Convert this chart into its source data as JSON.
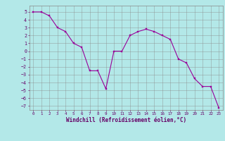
{
  "x": [
    0,
    1,
    2,
    3,
    4,
    5,
    6,
    7,
    8,
    9,
    10,
    11,
    12,
    13,
    14,
    15,
    16,
    17,
    18,
    19,
    20,
    21,
    22,
    23
  ],
  "y": [
    5.0,
    5.0,
    4.5,
    3.0,
    2.5,
    1.0,
    0.5,
    -2.5,
    -2.5,
    -4.8,
    0.0,
    0.0,
    2.0,
    2.5,
    2.8,
    2.5,
    2.0,
    1.5,
    -1.0,
    -1.5,
    -3.5,
    -4.5,
    -4.5,
    -7.2
  ],
  "line_color": "#990099",
  "marker_color": "#990099",
  "bg_color": "#b3e8e8",
  "grid_color": "#888888",
  "xlabel": "Windchill (Refroidissement éolien,°C)",
  "xlim": [
    -0.5,
    23.5
  ],
  "ylim": [
    -7.5,
    5.8
  ],
  "yticks": [
    5,
    4,
    3,
    2,
    1,
    0,
    -1,
    -2,
    -3,
    -4,
    -5,
    -6,
    -7
  ],
  "xticks": [
    0,
    1,
    2,
    3,
    4,
    5,
    6,
    7,
    8,
    9,
    10,
    11,
    12,
    13,
    14,
    15,
    16,
    17,
    18,
    19,
    20,
    21,
    22,
    23
  ],
  "font_color": "#660066",
  "xlabel_fontsize": 5.5,
  "tick_fontsize_x": 4.2,
  "tick_fontsize_y": 4.8
}
